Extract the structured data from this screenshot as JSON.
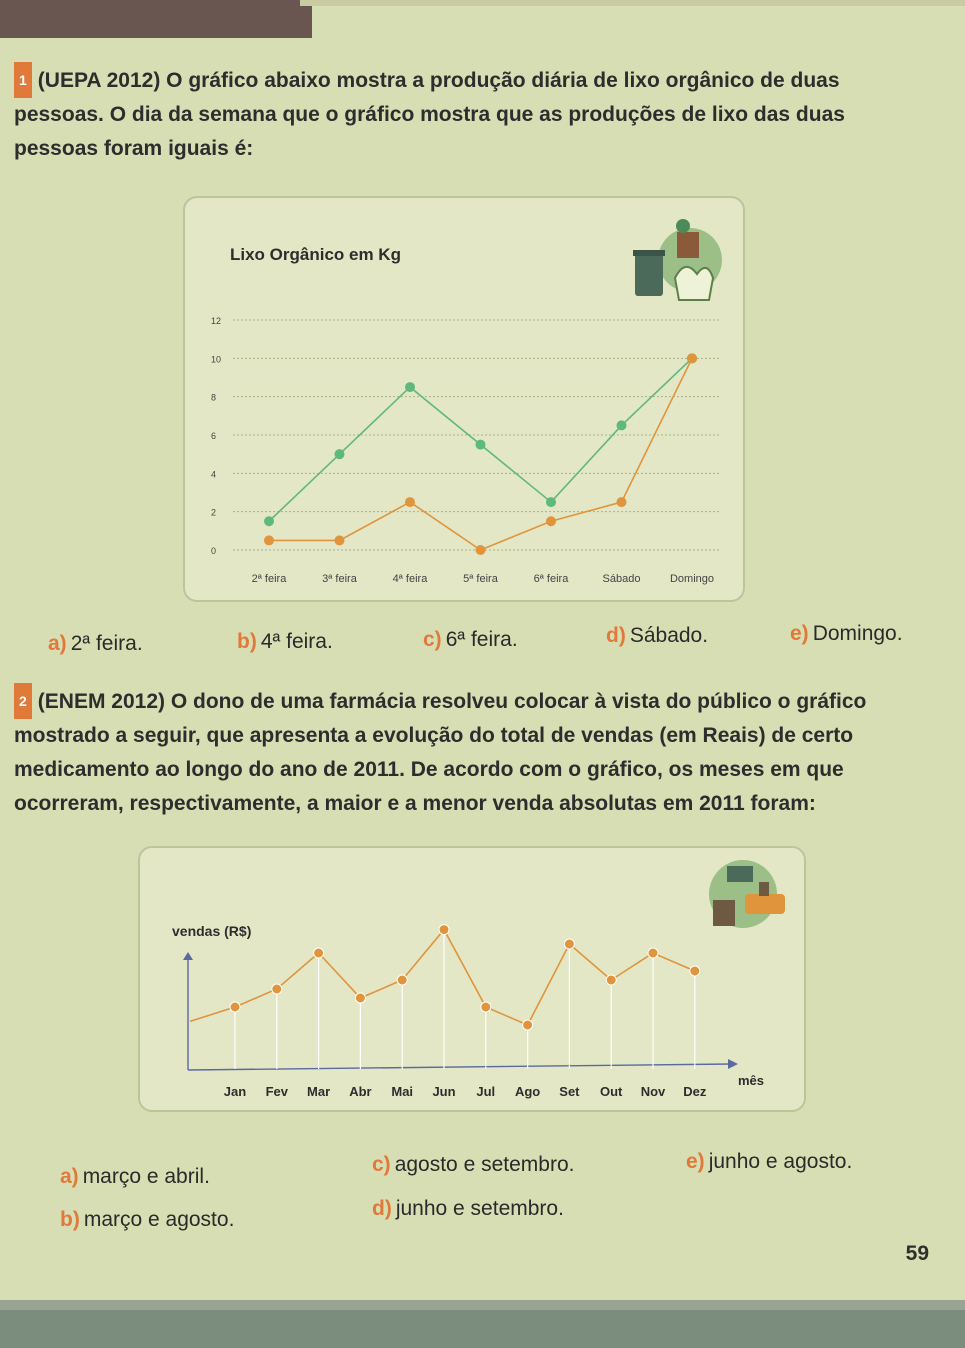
{
  "q1": {
    "number": "1",
    "text": "(UEPA 2012) O gráfico abaixo mostra a produção diária de lixo orgânico de duas pessoas. O dia da semana que o gráfico mostra que as produções de lixo das duas pessoas foram iguais é:",
    "options": [
      {
        "letter": "a)",
        "text": "2ª feira."
      },
      {
        "letter": "b)",
        "text": "4ª feira."
      },
      {
        "letter": "c)",
        "text": "6ª feira."
      },
      {
        "letter": "d)",
        "text": "Sábado."
      },
      {
        "letter": "e)",
        "text": "Domingo."
      }
    ]
  },
  "q2": {
    "number": "2",
    "text": "(ENEM 2012) O dono de uma farmácia resolveu colocar à vista do público o gráfico mostrado a seguir, que apresenta a evolução do total de vendas (em Reais) de certo medicamento ao longo do ano de 2011. De acordo com o gráfico, os meses em que ocorreram, respectivamente, a maior e a menor venda absolutas em 2011 foram:",
    "options": [
      {
        "letter": "a)",
        "text": "março e abril."
      },
      {
        "letter": "b)",
        "text": "março e agosto."
      },
      {
        "letter": "c)",
        "text": "agosto e setembro."
      },
      {
        "letter": "d)",
        "text": "junho e setembro."
      },
      {
        "letter": "e)",
        "text": "junho e agosto."
      }
    ]
  },
  "page_number": "59",
  "colors": {
    "accent": "#e07a3a",
    "green_series": "#5fb87d",
    "orange_series": "#e0943c",
    "chart_bg": "#e3e7c6"
  },
  "chart_data": [
    {
      "type": "line",
      "title": "Lixo Orgânico em Kg",
      "categories": [
        "2ª feira",
        "3ª feira",
        "4ª feira",
        "5ª feira",
        "6ª feira",
        "Sábado",
        "Domingo"
      ],
      "yticks": [
        "0",
        "2",
        "4",
        "6",
        "8",
        "10",
        "12"
      ],
      "ylim": [
        0,
        12
      ],
      "grid": true,
      "series": [
        {
          "color": "#5fb87d",
          "values": [
            1.5,
            5,
            8.5,
            5.5,
            2.5,
            6.5,
            10
          ]
        },
        {
          "color": "#e0943c",
          "values": [
            0.5,
            0.5,
            2.5,
            0,
            1.5,
            2.5,
            10
          ]
        }
      ],
      "icon": "recycling-bin-icon"
    },
    {
      "type": "line",
      "ylabel": "vendas (R$)",
      "xlabel": "mês",
      "categories": [
        "Jan",
        "Fev",
        "Mar",
        "Abr",
        "Mai",
        "Jun",
        "Jul",
        "Ago",
        "Set",
        "Out",
        "Nov",
        "Dez"
      ],
      "series": [
        {
          "color": "#e0943c",
          "values": [
            3.5,
            4.5,
            6.5,
            4,
            5,
            7.8,
            3.5,
            2.5,
            7,
            5,
            6.5,
            5.5
          ]
        }
      ],
      "icon": "pharmacy-shop-icon"
    }
  ]
}
